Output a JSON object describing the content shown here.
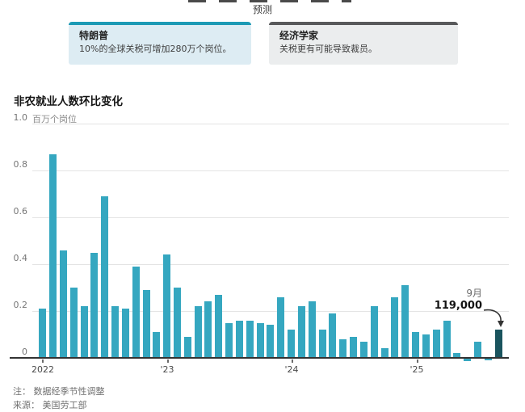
{
  "header": {
    "kicker": "预测",
    "cards": [
      {
        "title": "特朗普",
        "body": "10%的全球关税可增加280万个岗位。",
        "accent_color": "#1C9AB5",
        "bg_color": "#DDECF3"
      },
      {
        "title": "经济学家",
        "body": "关税更有可能导致裁员。",
        "accent_color": "#58595B",
        "bg_color": "#EBEDEE"
      }
    ]
  },
  "chart": {
    "title": "非农就业人数环比变化",
    "unit_label": "百万个岗位",
    "ytick_labels": [
      "1.0",
      "0.8",
      "0.6",
      "0.4",
      "0.2",
      "0"
    ]
  },
  "chart_data": {
    "type": "bar",
    "title": "非农就业人数环比变化",
    "xlabel": "",
    "ylabel": "百万个岗位",
    "ylim": [
      -0.05,
      1.0
    ],
    "yticks": [
      0,
      0.2,
      0.4,
      0.6,
      0.8,
      1.0
    ],
    "grid": true,
    "bar_color": "#35A7C0",
    "highlight": {
      "index": 44,
      "color": "#1A545E",
      "label_month": "9月",
      "label_value": "119,000"
    },
    "x_tick_labels": [
      "2022",
      "'23",
      "'24",
      "'25"
    ],
    "categories": [
      "2022-01",
      "2022-02",
      "2022-03",
      "2022-04",
      "2022-05",
      "2022-06",
      "2022-07",
      "2022-08",
      "2022-09",
      "2022-10",
      "2022-11",
      "2022-12",
      "2023-01",
      "2023-02",
      "2023-03",
      "2023-04",
      "2023-05",
      "2023-06",
      "2023-07",
      "2023-08",
      "2023-09",
      "2023-10",
      "2023-11",
      "2023-12",
      "2024-01",
      "2024-02",
      "2024-03",
      "2024-04",
      "2024-05",
      "2024-06",
      "2024-07",
      "2024-08",
      "2024-09",
      "2024-10",
      "2024-11",
      "2024-12",
      "2025-01",
      "2025-02",
      "2025-03",
      "2025-04",
      "2025-05",
      "2025-06",
      "2025-07",
      "2025-08",
      "2025-09"
    ],
    "values": [
      0.21,
      0.87,
      0.46,
      0.3,
      0.22,
      0.45,
      0.69,
      0.22,
      0.21,
      0.39,
      0.29,
      0.11,
      0.44,
      0.3,
      0.09,
      0.22,
      0.24,
      0.27,
      0.15,
      0.16,
      0.16,
      0.15,
      0.14,
      0.26,
      0.12,
      0.22,
      0.24,
      0.12,
      0.19,
      0.08,
      0.09,
      0.07,
      0.22,
      0.04,
      0.26,
      0.31,
      0.11,
      0.1,
      0.12,
      0.16,
      0.02,
      -0.01,
      0.07,
      -0.005,
      0.119
    ]
  },
  "annotation": {
    "month": "9月",
    "value": "119,000"
  },
  "footer": {
    "note": "注： 数据经季节性调整",
    "source": "来源： 美国劳工部"
  }
}
